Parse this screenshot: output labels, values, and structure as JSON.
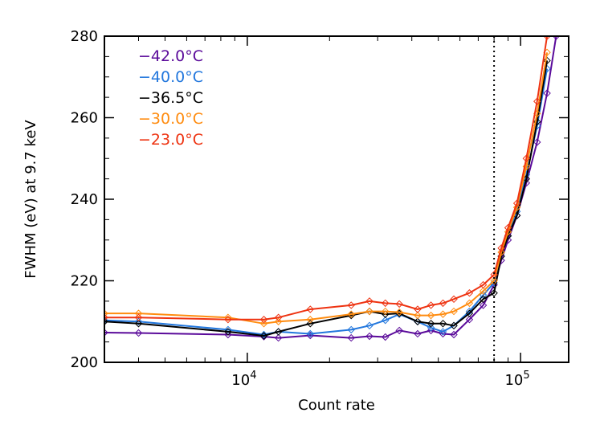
{
  "chart_data": {
    "type": "line",
    "xscale": "log",
    "xlabel": "Count rate",
    "ylabel": "FWHM (eV) at 9.7 keV",
    "xlim": [
      3000,
      150000
    ],
    "ylim": [
      200,
      280
    ],
    "x_ticks": [
      {
        "value": 10000,
        "base": "10",
        "exp": "4"
      },
      {
        "value": 100000,
        "base": "10",
        "exp": "5"
      }
    ],
    "y_ticks": [
      200,
      220,
      240,
      260,
      280
    ],
    "vline": {
      "x": 80000,
      "style": "dotted"
    },
    "series": [
      {
        "name": "−42.0°C",
        "color": "#5a0a9a",
        "x": [
          3000,
          4000,
          8500,
          11500,
          13000,
          17000,
          24000,
          28000,
          32000,
          36000,
          42000,
          47000,
          52000,
          57000,
          65000,
          73000,
          80000,
          85000,
          90000,
          97000,
          105000,
          115000,
          125000,
          135000
        ],
        "y": [
          207.3,
          207.2,
          206.8,
          206.3,
          206.0,
          206.6,
          206.0,
          206.4,
          206.2,
          207.8,
          207.0,
          207.8,
          207.0,
          206.8,
          210.5,
          214.0,
          219.0,
          225.0,
          230.0,
          236.0,
          244.0,
          254.0,
          266.0,
          280.0
        ]
      },
      {
        "name": "−40.0°C",
        "color": "#2277dd",
        "x": [
          3000,
          4000,
          8500,
          11500,
          13000,
          17000,
          24000,
          28000,
          32000,
          36000,
          42000,
          47000,
          52000,
          57000,
          65000,
          73000,
          80000,
          85000,
          90000,
          97000,
          105000,
          115000,
          125000
        ],
        "y": [
          210.3,
          210.0,
          208.0,
          206.8,
          207.5,
          207.0,
          208.0,
          209.0,
          210.3,
          211.8,
          210.0,
          208.5,
          207.5,
          209.0,
          212.5,
          216.5,
          219.5,
          226.0,
          231.0,
          237.0,
          246.0,
          258.0,
          272.0
        ]
      },
      {
        "name": "−36.5°C",
        "color": "#000000",
        "x": [
          3000,
          4000,
          8500,
          11500,
          13000,
          17000,
          24000,
          28000,
          32000,
          36000,
          42000,
          47000,
          52000,
          57000,
          65000,
          73000,
          80000,
          85000,
          90000,
          97000,
          105000,
          115000,
          125000
        ],
        "y": [
          210.0,
          209.5,
          207.5,
          206.5,
          207.5,
          209.5,
          211.5,
          212.5,
          211.8,
          212.0,
          210.0,
          209.5,
          209.5,
          209.0,
          212.0,
          215.5,
          217.0,
          226.0,
          231.0,
          236.0,
          245.0,
          259.0,
          274.0
        ]
      },
      {
        "name": "−30.0°C",
        "color": "#ff8c10",
        "x": [
          3000,
          4000,
          8500,
          11500,
          13000,
          17000,
          24000,
          28000,
          32000,
          36000,
          42000,
          47000,
          52000,
          57000,
          65000,
          73000,
          80000,
          85000,
          90000,
          97000,
          105000,
          115000,
          125000
        ],
        "y": [
          212.0,
          212.0,
          211.0,
          209.5,
          210.0,
          210.5,
          211.8,
          212.5,
          212.5,
          212.3,
          211.5,
          211.5,
          211.8,
          212.5,
          214.5,
          217.5,
          220.0,
          227.0,
          232.0,
          238.0,
          248.0,
          261.0,
          276.0
        ]
      },
      {
        "name": "−23.0°C",
        "color": "#ee3311",
        "x": [
          3000,
          4000,
          8500,
          11500,
          13000,
          17000,
          24000,
          28000,
          32000,
          36000,
          42000,
          47000,
          52000,
          57000,
          65000,
          73000,
          80000,
          85000,
          90000,
          97000,
          105000,
          115000,
          125000
        ],
        "y": [
          211.0,
          211.0,
          210.5,
          210.5,
          211.0,
          213.0,
          214.0,
          215.0,
          214.5,
          214.3,
          213.0,
          214.0,
          214.5,
          215.5,
          217.0,
          219.0,
          221.5,
          228.0,
          233.0,
          239.0,
          250.0,
          264.0,
          280.0
        ]
      }
    ]
  }
}
